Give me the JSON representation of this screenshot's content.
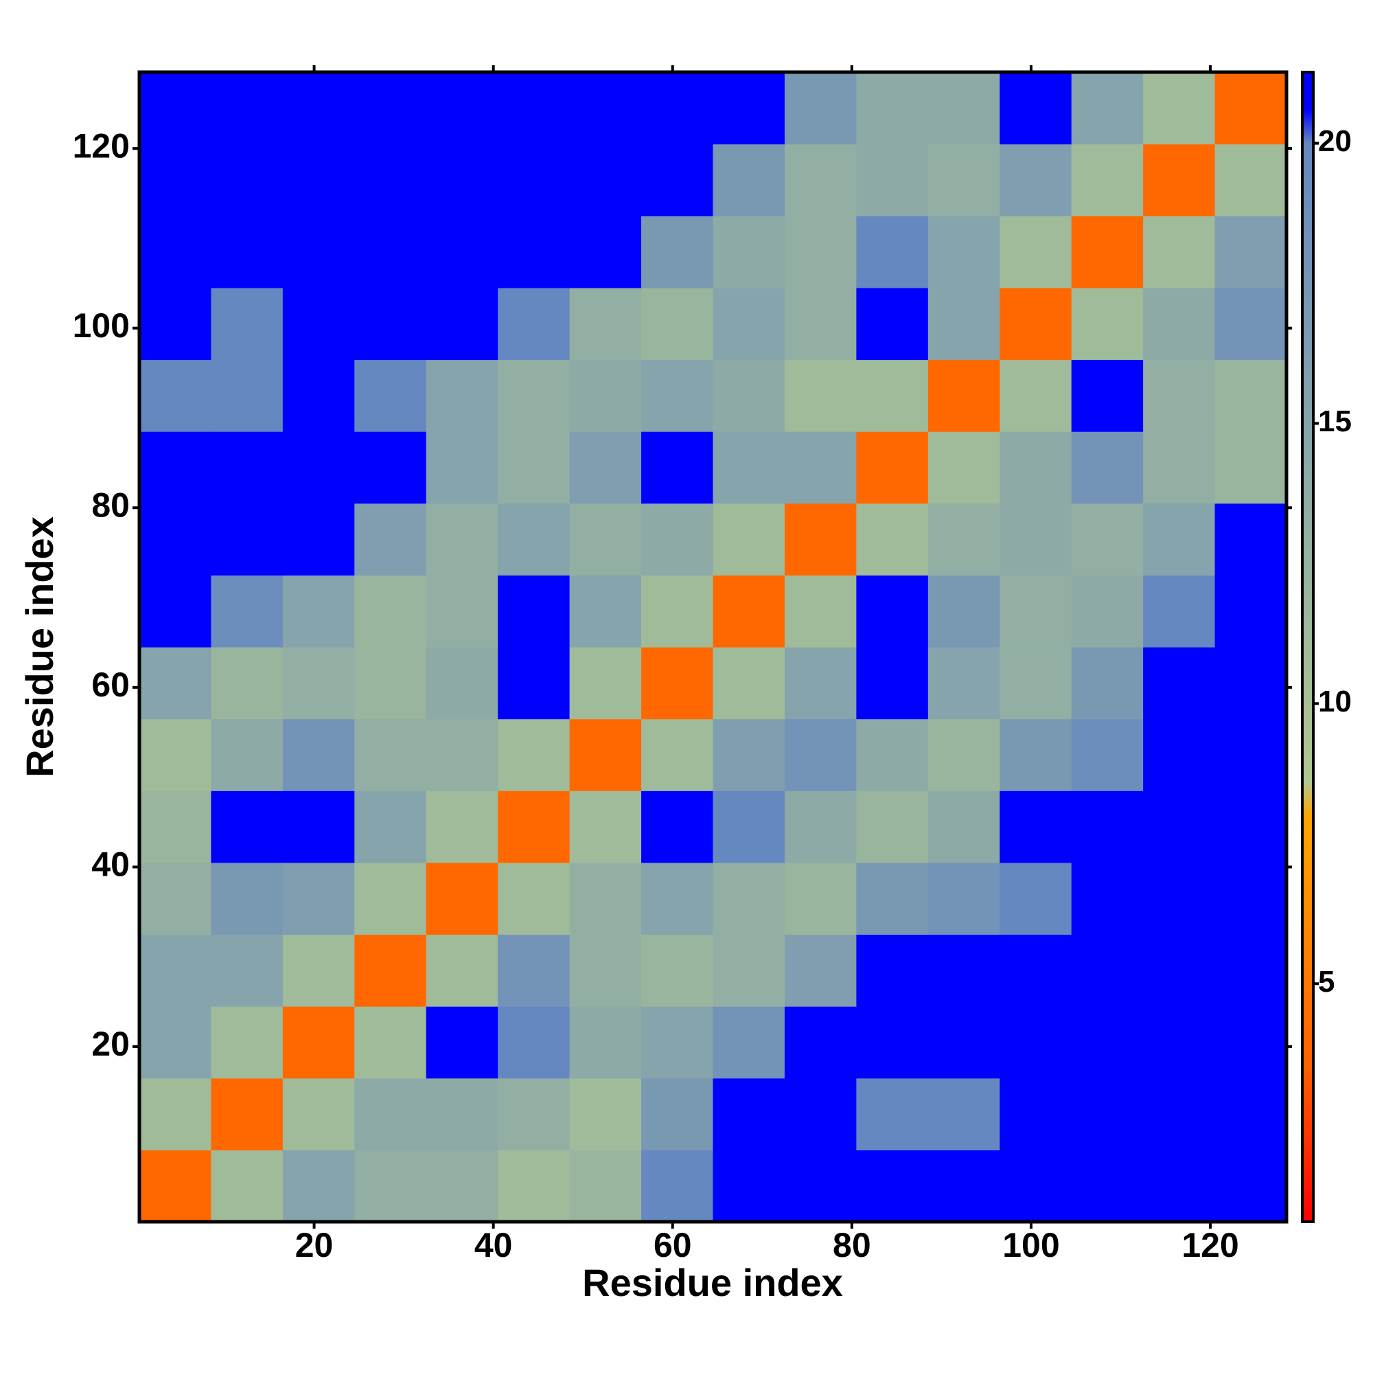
{
  "chart_data": {
    "type": "heatmap",
    "xlabel": "Residue index",
    "ylabel": "Residue index",
    "xbins": [
      0.5,
      8.5,
      16.5,
      24.5,
      32.5,
      40.5,
      48.5,
      56.5,
      64.5,
      72.5,
      80.5,
      88.5,
      96.5,
      104.5,
      112.5,
      120.5,
      128.5
    ],
    "ybins": [
      0.5,
      8.5,
      16.5,
      24.5,
      32.5,
      40.5,
      48.5,
      56.5,
      64.5,
      72.5,
      80.5,
      88.5,
      96.5,
      104.5,
      112.5,
      120.5,
      128.5
    ],
    "xlim": [
      0.5,
      128.5
    ],
    "ylim": [
      0.5,
      128.5
    ],
    "xticks": [
      20,
      40,
      60,
      80,
      100,
      120
    ],
    "yticks": [
      20,
      40,
      60,
      80,
      100,
      120
    ],
    "z": [
      [
        4,
        11,
        15,
        13,
        13,
        11,
        12,
        20,
        21,
        21,
        21,
        21,
        21,
        21,
        21,
        21
      ],
      [
        11,
        4,
        11,
        14,
        14,
        13,
        11,
        17,
        21,
        21,
        20,
        20,
        21,
        21,
        21,
        21
      ],
      [
        15,
        11,
        4,
        11,
        21,
        20,
        14,
        15,
        18,
        21,
        21,
        21,
        21,
        21,
        21,
        21
      ],
      [
        15,
        15,
        11,
        4,
        11,
        18,
        13,
        12,
        13,
        16,
        21,
        21,
        21,
        21,
        21,
        21
      ],
      [
        13,
        17,
        16,
        11,
        4,
        11,
        13,
        15,
        13,
        12,
        17,
        18,
        20,
        21,
        21,
        21
      ],
      [
        12,
        21,
        21,
        15,
        11,
        4,
        11,
        21,
        20,
        14,
        12,
        14,
        21,
        21,
        21,
        21
      ],
      [
        11,
        14,
        18,
        13,
        13,
        11,
        4,
        11,
        16,
        18,
        14,
        12,
        17,
        19,
        21,
        21
      ],
      [
        15,
        12,
        13,
        12,
        14,
        21,
        11,
        4,
        11,
        15,
        21,
        15,
        13,
        17,
        21,
        21
      ],
      [
        21,
        19,
        15,
        12,
        13,
        21,
        15,
        11,
        4,
        11,
        21,
        17,
        13,
        14,
        20,
        21
      ],
      [
        21,
        21,
        21,
        16,
        13,
        15,
        13,
        14,
        11,
        4,
        11,
        13,
        14,
        13,
        15,
        21
      ],
      [
        21,
        21,
        21,
        21,
        15,
        13,
        16,
        21,
        15,
        15,
        4,
        11,
        14,
        18,
        13,
        12
      ],
      [
        20,
        20,
        21,
        20,
        15,
        13,
        14,
        15,
        14,
        11,
        11,
        4,
        11,
        21,
        13,
        12
      ],
      [
        21,
        20,
        21,
        21,
        21,
        20,
        13,
        12,
        15,
        13,
        21,
        15,
        4,
        11,
        14,
        18
      ],
      [
        21,
        21,
        21,
        21,
        21,
        21,
        21,
        17,
        14,
        13,
        20,
        15,
        11,
        4,
        11,
        16
      ],
      [
        21,
        21,
        21,
        21,
        21,
        21,
        21,
        21,
        17,
        13,
        14,
        13,
        16,
        11,
        4,
        11
      ],
      [
        21,
        21,
        21,
        21,
        21,
        21,
        21,
        21,
        21,
        17,
        14,
        14,
        21,
        15,
        11,
        4
      ]
    ],
    "zlim": [
      0.75,
      21.27
    ],
    "zticks": [
      5,
      10,
      15,
      20
    ],
    "colorscale": [
      [
        0.75,
        "#ff0000"
      ],
      [
        3.5,
        "#ff6000"
      ],
      [
        8,
        "#ffa500"
      ],
      [
        8.6,
        "#b0c890"
      ],
      [
        20,
        "#6688c0"
      ],
      [
        20.6,
        "#0000ff"
      ],
      [
        21.27,
        "#0000ff"
      ]
    ]
  }
}
